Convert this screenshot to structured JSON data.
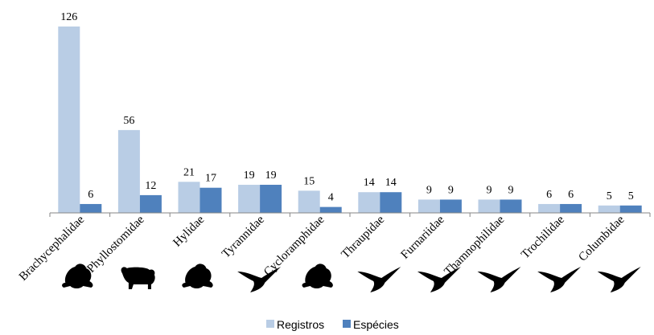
{
  "chart_data": {
    "type": "bar",
    "categories": [
      "Brachycephalidae",
      "Phyllostomidae",
      "Hylidae",
      "Tyrannidae",
      "Cycloramphidae",
      "Thraupidae",
      "Furnariidae",
      "Thamnophilidae",
      "Trochilidae",
      "Columbidae"
    ],
    "category_icons": [
      "frog-icon",
      "monkey-icon",
      "frog-icon",
      "hummingbird-icon",
      "frog-icon",
      "hummingbird-icon",
      "hummingbird-icon",
      "hummingbird-icon",
      "hummingbird-icon",
      "hummingbird-icon"
    ],
    "series": [
      {
        "name": "Registros",
        "color": "#b9cde5",
        "values": [
          126,
          56,
          21,
          19,
          15,
          14,
          9,
          9,
          6,
          5
        ]
      },
      {
        "name": "Espécies",
        "color": "#4f81bd",
        "values": [
          6,
          12,
          17,
          19,
          4,
          14,
          9,
          9,
          6,
          5
        ]
      }
    ],
    "ylim": [
      0,
      130
    ],
    "data_labels": true,
    "grid": false,
    "legend": "bottom",
    "title": "",
    "xlabel": "",
    "ylabel": ""
  }
}
